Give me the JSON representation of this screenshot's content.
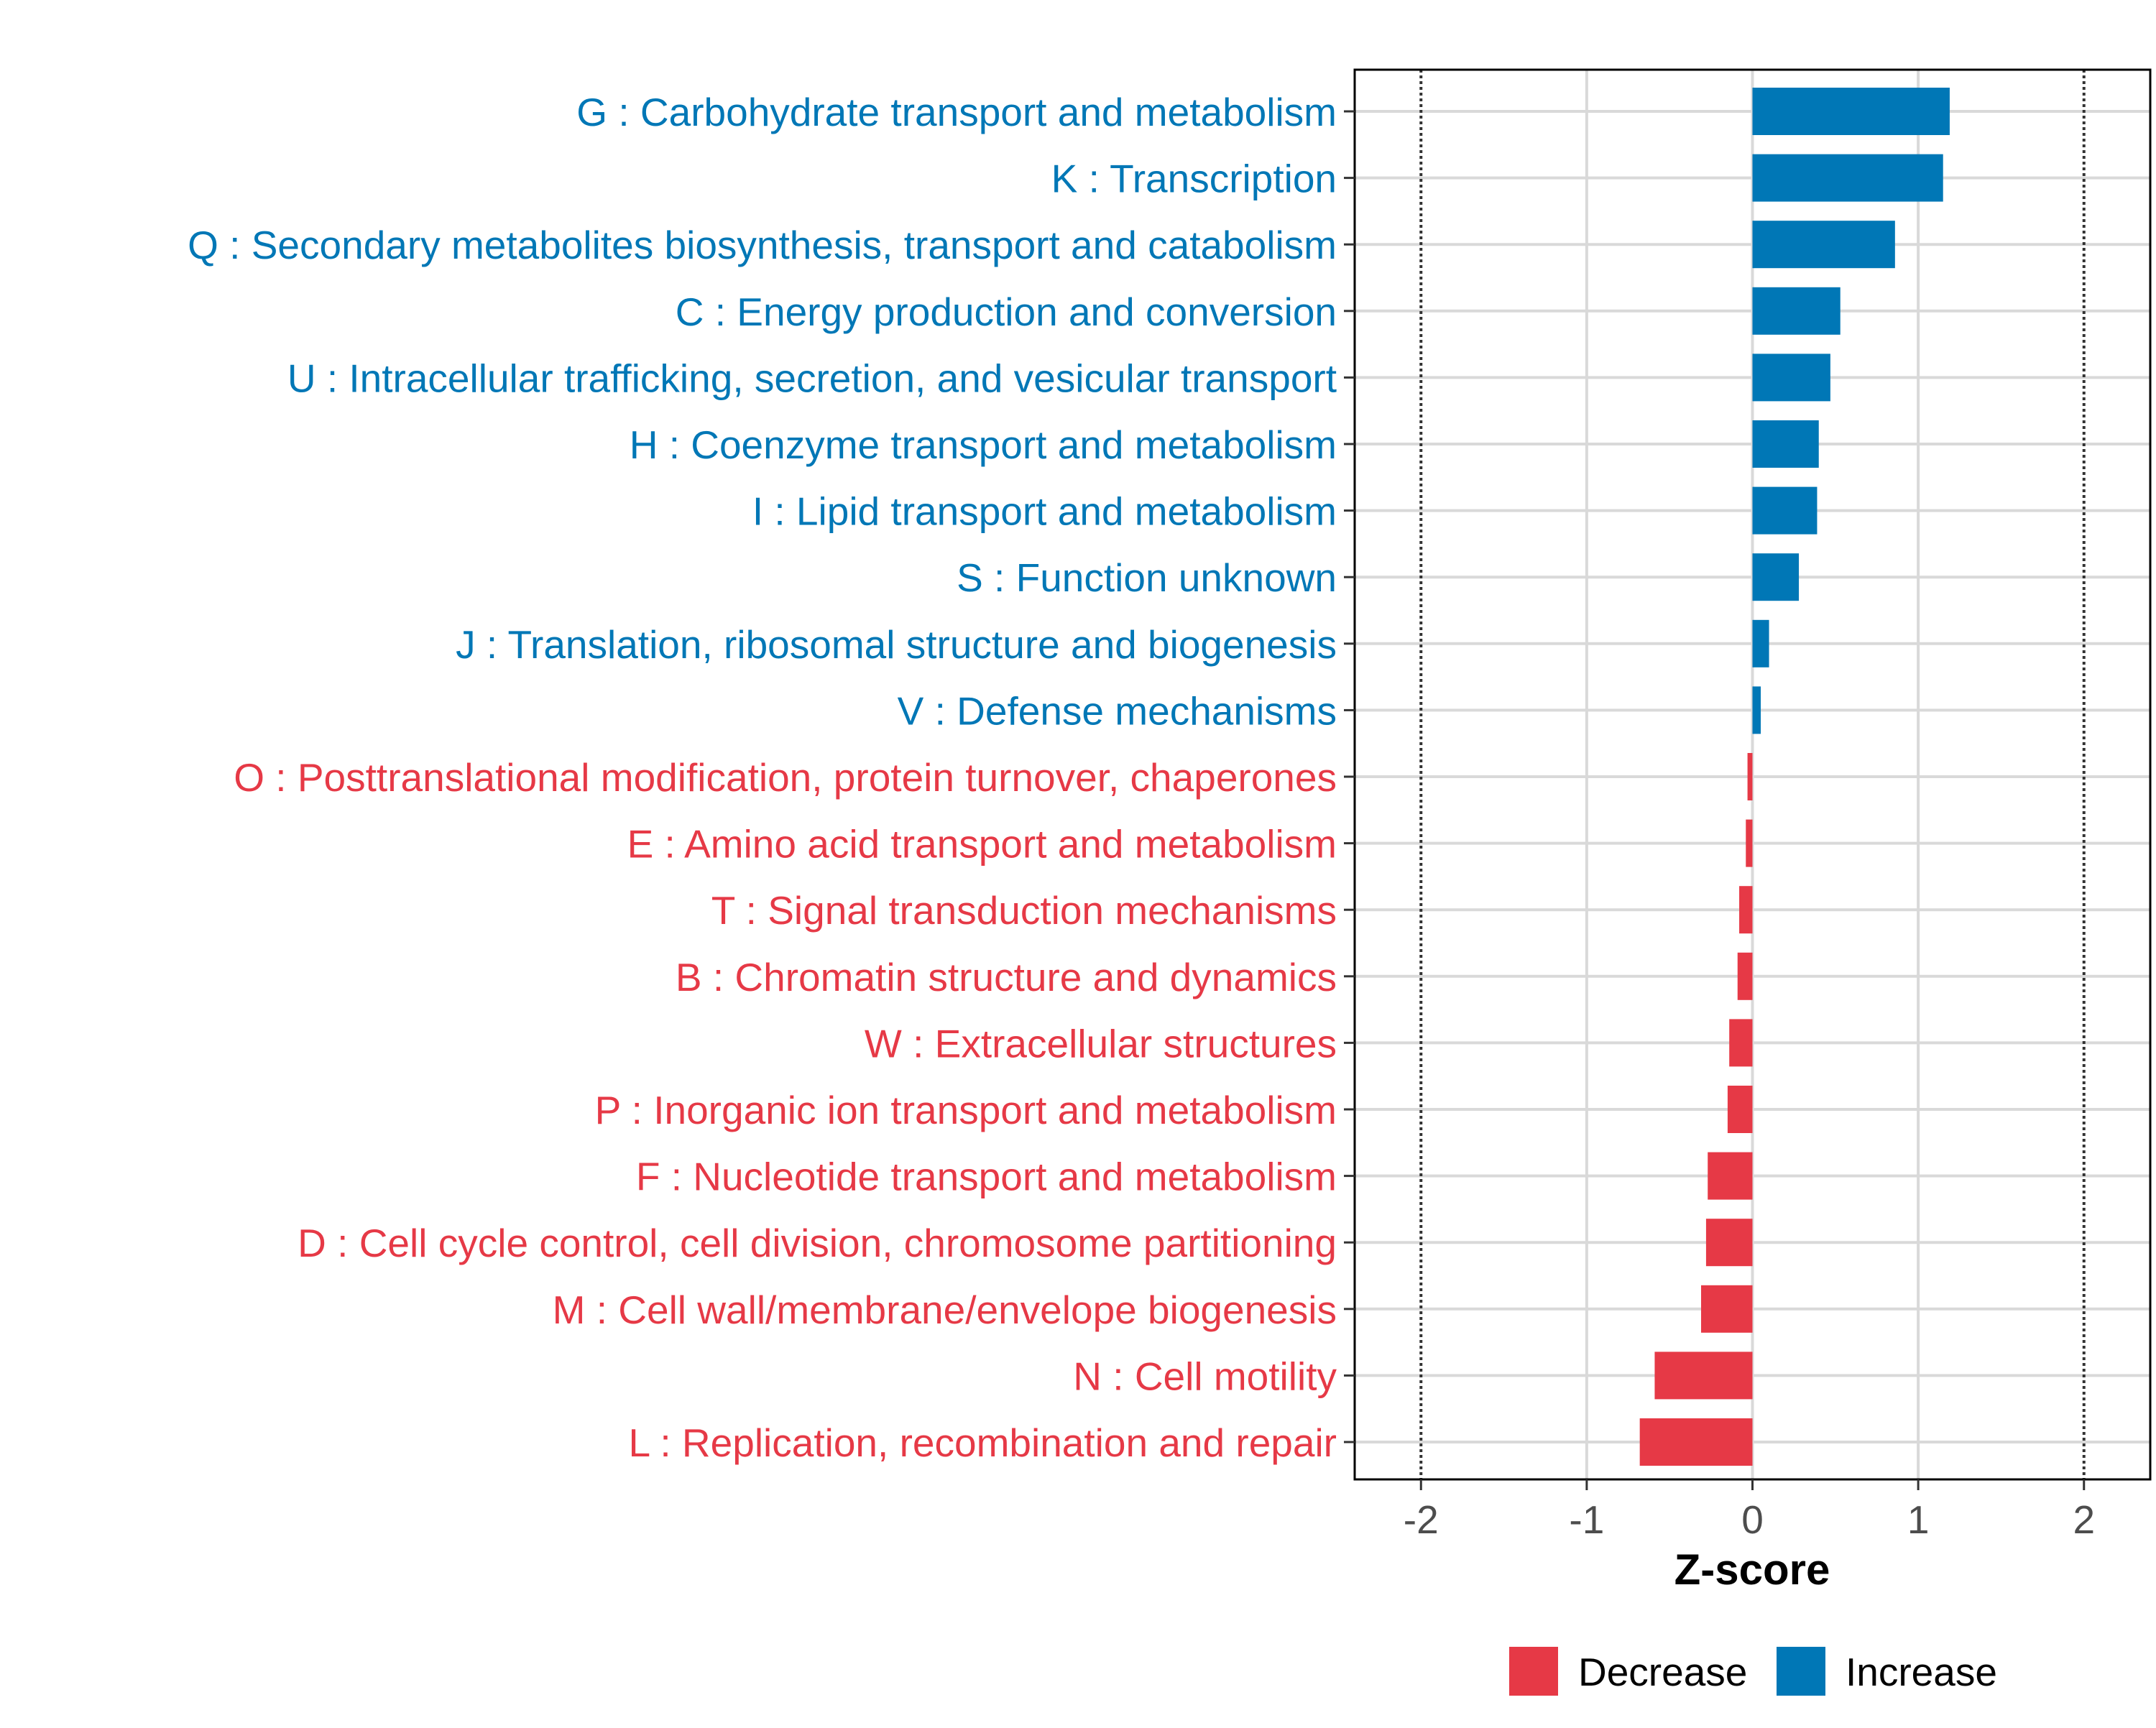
{
  "chart_data": {
    "type": "bar",
    "orientation": "horizontal",
    "title": "",
    "xlabel": "Z-score",
    "ylabel": "",
    "xlim": [
      -2.4,
      2.4
    ],
    "xticks": [
      -2,
      -1,
      0,
      1,
      2
    ],
    "xtick_labels": [
      "-2",
      "-1",
      "0",
      "1",
      "2"
    ],
    "reference_lines": [
      -2,
      2
    ],
    "grid": true,
    "categories": [
      "G : Carbohydrate transport and metabolism",
      "K : Transcription",
      "Q : Secondary metabolites biosynthesis, transport and catabolism",
      "C : Energy production and conversion",
      "U : Intracellular trafficking, secretion, and vesicular transport",
      "H : Coenzyme transport and metabolism",
      "I : Lipid transport and metabolism",
      "S : Function unknown",
      "J : Translation, ribosomal structure and biogenesis",
      "V : Defense mechanisms",
      "O : Posttranslational modification, protein turnover, chaperones",
      "E : Amino acid transport and metabolism",
      "T : Signal transduction mechanisms",
      "B : Chromatin structure and dynamics",
      "W : Extracellular structures",
      "P : Inorganic ion transport and metabolism",
      "F : Nucleotide transport and metabolism",
      "D : Cell cycle control, cell division, chromosome partitioning",
      "M : Cell wall/membrane/envelope biogenesis",
      "N : Cell motility",
      "L : Replication, recombination and repair"
    ],
    "values": [
      1.19,
      1.15,
      0.86,
      0.53,
      0.47,
      0.4,
      0.39,
      0.28,
      0.1,
      0.05,
      -0.03,
      -0.04,
      -0.08,
      -0.09,
      -0.14,
      -0.15,
      -0.27,
      -0.28,
      -0.31,
      -0.59,
      -0.68
    ],
    "legend": {
      "placement": "bottom-right",
      "entries": [
        {
          "name": "Decrease",
          "color": "#e63946"
        },
        {
          "name": "Increase",
          "color": "#0077b6"
        }
      ]
    },
    "colors": {
      "increase": "#0077b6",
      "decrease": "#e63946",
      "grid": "#d9d9d9",
      "axis": "#000000",
      "tick_text": "#4d4d4d"
    }
  }
}
